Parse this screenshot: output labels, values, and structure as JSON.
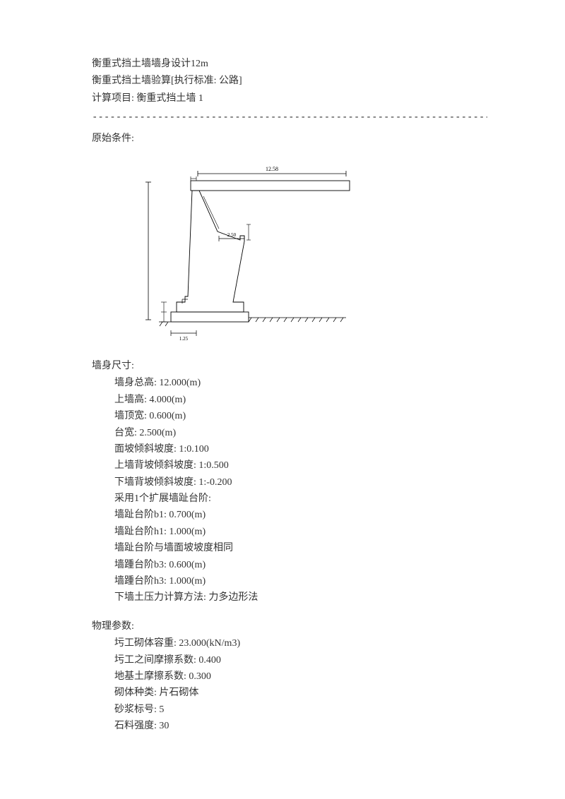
{
  "header": {
    "line1": "衡重式挡土墙墙身设计12m",
    "line2": "衡重式挡土墙验算[执行标准: 公路]",
    "line3": "计算项目:  衡重式挡土墙 1",
    "divider": "------------------------------------------------------------------------",
    "conditions": "原始条件:"
  },
  "diagram": {
    "stroke": "#000000",
    "fill": "#ffffff",
    "dim_12_58": "12.58",
    "dim_2_50": "2.50",
    "dim_1_25": "1.25",
    "hatch_color": "#000000"
  },
  "dims": {
    "title": "墙身尺寸:",
    "items": [
      "墙身总高: 12.000(m)",
      "上墙高: 4.000(m)",
      "墙顶宽: 0.600(m)",
      "台宽: 2.500(m)",
      "面坡倾斜坡度: 1:0.100",
      "上墙背坡倾斜坡度: 1:0.500",
      "下墙背坡倾斜坡度: 1:-0.200",
      "采用1个扩展墙趾台阶:",
      "墙趾台阶b1: 0.700(m)",
      "墙趾台阶h1: 1.000(m)",
      "墙趾台阶与墙面坡坡度相同",
      "墙踵台阶b3: 0.600(m)",
      "墙踵台阶h3: 1.000(m)",
      "下墙土压力计算方法: 力多边形法"
    ]
  },
  "phys": {
    "title": "物理参数:",
    "items": [
      "圬工砌体容重: 23.000(kN/m3)",
      "圬工之间摩擦系数: 0.400",
      "地基土摩擦系数: 0.300",
      "砌体种类: 片石砌体",
      "砂浆标号: 5",
      "石料强度: 30"
    ]
  }
}
